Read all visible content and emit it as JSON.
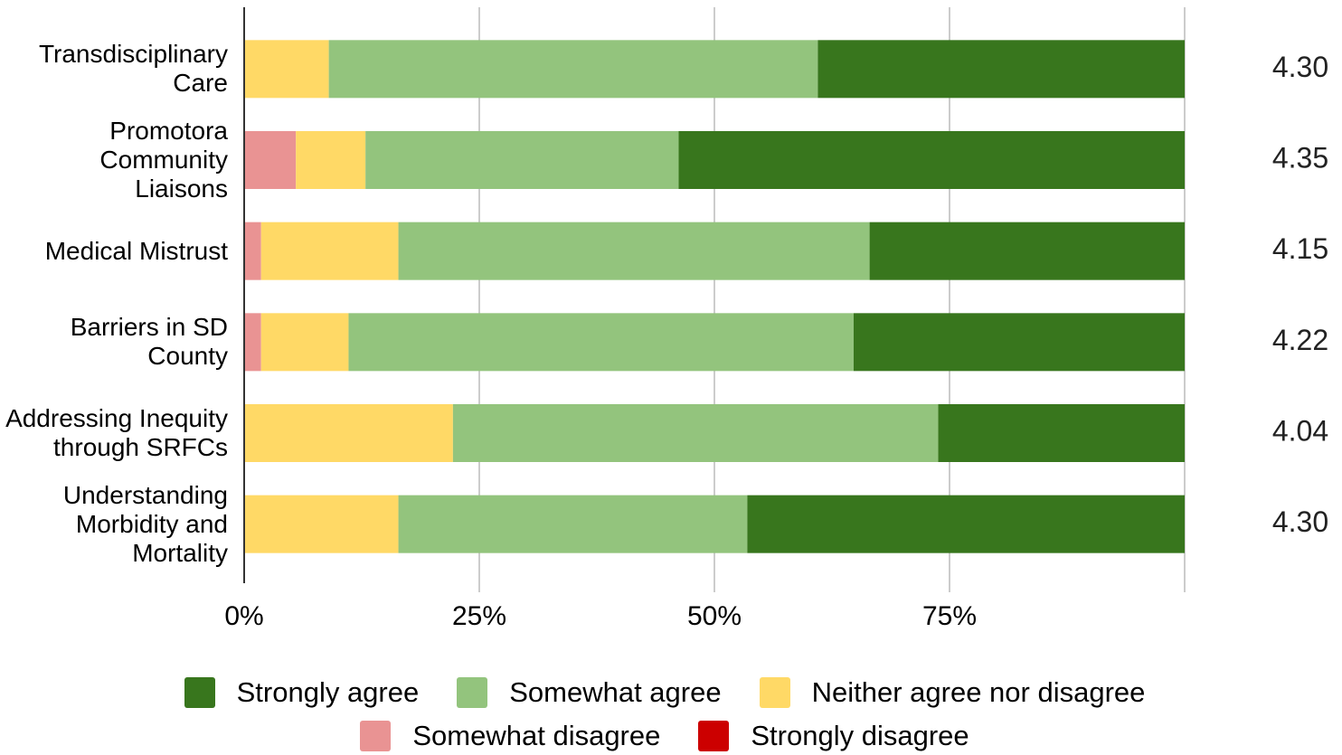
{
  "chart_data": {
    "type": "stacked-bar-horizontal",
    "categories": [
      "Transdisciplinary Care",
      "Promotora Community Liaisons",
      "Medical Mistrust",
      "Barriers in SD County",
      "Addressing Inequity through SRFCs",
      "Understanding Morbidity and Mortality"
    ],
    "series": [
      {
        "name": "Strongly agree",
        "color": "#38761d",
        "values": [
          39,
          53.8,
          33.5,
          35.2,
          26.2,
          46.5
        ]
      },
      {
        "name": "Somewhat agree",
        "color": "#93c47d",
        "values": [
          52,
          33.3,
          50.1,
          53.7,
          51.6,
          37.1
        ]
      },
      {
        "name": "Neither agree nor disagree",
        "color": "#ffd966",
        "values": [
          9,
          7.4,
          14.6,
          9.3,
          22.2,
          16.4
        ]
      },
      {
        "name": "Somewhat disagree",
        "color": "#e99393",
        "values": [
          0,
          5.5,
          1.8,
          1.8,
          0,
          0
        ]
      },
      {
        "name": "Strongly disagree",
        "color": "#cc0000",
        "values": [
          0,
          0,
          0,
          0,
          0,
          0
        ]
      }
    ],
    "mean_labels": [
      "4.30",
      "4.35",
      "4.15",
      "4.22",
      "4.04",
      "4.30"
    ],
    "xlim": [
      0,
      100
    ],
    "xticks": [
      {
        "value": 0,
        "label": "0%"
      },
      {
        "value": 25,
        "label": "25%"
      },
      {
        "value": 50,
        "label": "50%"
      },
      {
        "value": 75,
        "label": "75%"
      }
    ],
    "grid": true
  }
}
